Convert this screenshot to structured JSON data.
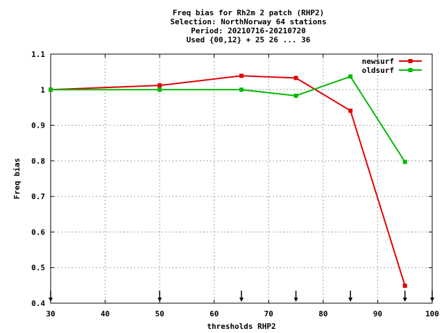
{
  "chart_data": {
    "type": "line",
    "title_lines": [
      "Freq bias  for Rh2m 2 patch (RHP2)",
      "Selection: NorthNorway     64 stations",
      "Period: 20210716-20210720",
      "Used {00,12} + 25 26 ... 36"
    ],
    "xlabel": "thresholds RHP2",
    "ylabel": "Freq bias",
    "xlim": [
      30,
      100
    ],
    "ylim": [
      0.4,
      1.1
    ],
    "x_ticks": [
      30,
      40,
      50,
      60,
      70,
      80,
      90,
      100
    ],
    "y_ticks": [
      0.4,
      0.5,
      0.6,
      0.7,
      0.8,
      0.9,
      1.0,
      1.1
    ],
    "y_tick_labels": [
      "0.4",
      "0.5",
      "0.6",
      "0.7",
      "0.8",
      "0.9",
      "1",
      "1.1"
    ],
    "grid": true,
    "legend_position": "top-right",
    "threshold_arrows_x": [
      30,
      50,
      65,
      75,
      85,
      95,
      100
    ],
    "series": [
      {
        "name": "newsurf",
        "color": "#e00000",
        "x": [
          30,
          50,
          65,
          75,
          85,
          95
        ],
        "y": [
          1.0,
          1.012,
          1.039,
          1.033,
          0.941,
          0.449
        ]
      },
      {
        "name": "oldsurf",
        "color": "#00b800",
        "x": [
          30,
          50,
          65,
          75,
          85,
          95
        ],
        "y": [
          1.0,
          1.0,
          1.0,
          0.983,
          1.037,
          0.797
        ]
      }
    ]
  }
}
